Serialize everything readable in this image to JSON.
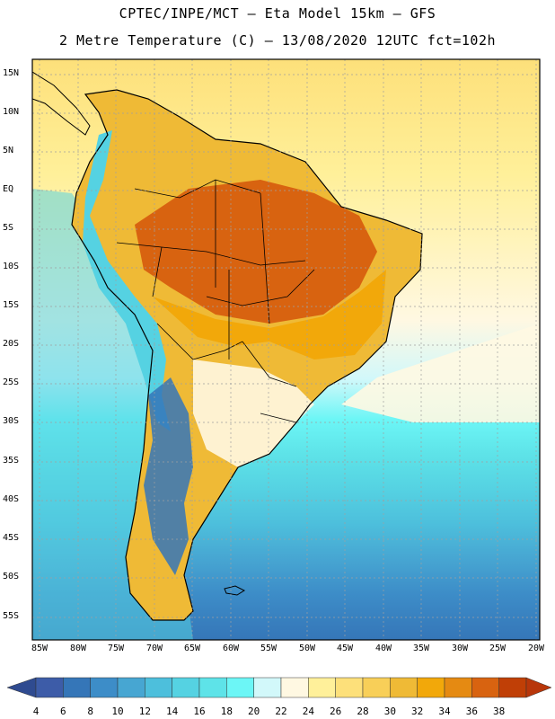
{
  "header": {
    "title_line1": "CPTEC/INPE/MCT –  Eta Model 15km – GFS",
    "title_line2": "2 Metre Temperature (C) – 13/08/2020 12UTC fct=102h"
  },
  "axes": {
    "lat_labels": [
      "15N",
      "10N",
      "5N",
      "EQ",
      "5S",
      "10S",
      "15S",
      "20S",
      "25S",
      "30S",
      "35S",
      "40S",
      "45S",
      "50S",
      "55S"
    ],
    "lon_labels": [
      "85W",
      "80W",
      "75W",
      "70W",
      "65W",
      "60W",
      "55W",
      "50W",
      "45W",
      "40W",
      "35W",
      "30W",
      "25W",
      "20W"
    ]
  },
  "colorbar": {
    "ticks": [
      "4",
      "6",
      "8",
      "10",
      "12",
      "14",
      "16",
      "18",
      "20",
      "22",
      "24",
      "26",
      "28",
      "30",
      "32",
      "34",
      "36",
      "38"
    ],
    "colors": [
      "#3d5ca8",
      "#3576b8",
      "#3d8dc8",
      "#47a6d2",
      "#4dbfdc",
      "#55d2e2",
      "#5ee3e8",
      "#6cf6f6",
      "#d2f8fa",
      "#fff8e2",
      "#fff09a",
      "#fde07a",
      "#f8cf58",
      "#efba36",
      "#f2a80a",
      "#e58a12",
      "#d86310",
      "#c03f06"
    ],
    "arrow_low": "#2f4b90",
    "arrow_high": "#b8360a"
  },
  "map": {
    "ocean_colors": [
      "#fde07a",
      "#fff09a",
      "#fff8e2",
      "#d2f8fa",
      "#6cf6f6",
      "#5ee3e8",
      "#55d2e2",
      "#4dbfdc",
      "#47a6d2",
      "#3d8dc8",
      "#3576b8"
    ],
    "land_warm": "#d86310",
    "land_orange": "#f2a80a",
    "land_mid": "#efba36",
    "andes_cool": "#55d2e2",
    "patagonia": "#3576b8",
    "grid_color": "#a0a0a0",
    "coast_color": "#000000"
  }
}
